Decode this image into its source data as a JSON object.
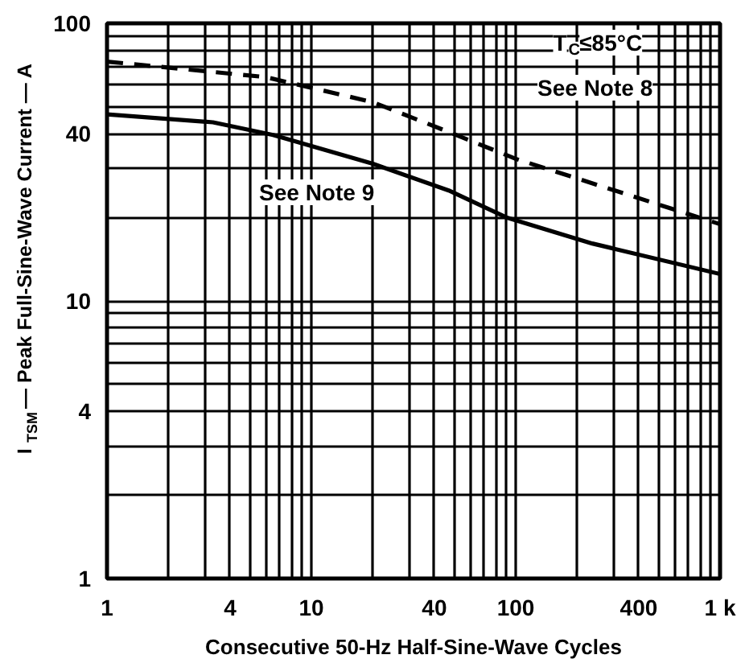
{
  "chart_data": {
    "type": "line",
    "x": [
      1,
      3.3,
      6.5,
      20,
      47,
      90,
      237,
      1000
    ],
    "series": [
      {
        "color": "#000000",
        "line_style": "solid",
        "values": [
          47,
          44,
          39.6,
          31.2,
          25,
          20,
          16.1,
          12.5
        ]
      },
      {
        "color": "#000000",
        "line_style": "dashed",
        "x": [
          1,
          6,
          20,
          47,
          100,
          1000
        ],
        "values": [
          72.8,
          64,
          52,
          40.6,
          32.5,
          18.9
        ]
      }
    ],
    "xlabel": "Consecutive 50-Hz Half-Sine-Wave Cycles",
    "ylabel": "I$_{TSM}$ — Peak Full-Sine-Wave Current — A",
    "log": "xy",
    "xlim": [
      1,
      1000
    ],
    "ylim": [
      1,
      100
    ],
    "xticks": [
      1,
      {
        "value": 2,
        "label": null
      },
      {
        "value": 3,
        "label": null
      },
      4,
      {
        "value": 5,
        "label": null
      },
      {
        "value": 6,
        "label": null
      },
      {
        "value": 7,
        "label": null
      },
      {
        "value": 8,
        "label": null
      },
      {
        "value": 9,
        "label": null
      },
      10,
      {
        "value": 20,
        "label": null
      },
      {
        "value": 30,
        "label": null
      },
      40,
      {
        "value": 50,
        "label": null
      },
      {
        "value": 60,
        "label": null
      },
      {
        "value": 70,
        "label": null
      },
      {
        "value": 80,
        "label": null
      },
      {
        "value": 90,
        "label": null
      },
      100,
      {
        "value": 200,
        "label": null
      },
      {
        "value": 300,
        "label": null
      },
      400,
      {
        "value": 500,
        "label": null
      },
      {
        "value": 600,
        "label": null
      },
      {
        "value": 700,
        "label": null
      },
      {
        "value": 800,
        "label": null
      },
      {
        "value": 900,
        "label": null
      },
      {
        "value": 1000,
        "label": "1 k"
      }
    ],
    "yticks": [
      1,
      {
        "value": 2,
        "label": null
      },
      {
        "value": 3,
        "label": null
      },
      4,
      {
        "value": 5,
        "label": null
      },
      {
        "value": 6,
        "label": null
      },
      {
        "value": 7,
        "label": null
      },
      {
        "value": 8,
        "label": null
      },
      {
        "value": 9,
        "label": null
      },
      10,
      {
        "value": 20,
        "label": null
      },
      {
        "value": 30,
        "label": null
      },
      40,
      {
        "value": 50,
        "label": null
      },
      {
        "value": 60,
        "label": null
      },
      {
        "value": 70,
        "label": null
      },
      {
        "value": 80,
        "label": null
      },
      {
        "value": 90,
        "label": null
      },
      100
    ],
    "grid": true,
    "annotations": [
      "T$_{C}$≤85°C",
      "See Note 8",
      "See Note 9"
    ]
  }
}
